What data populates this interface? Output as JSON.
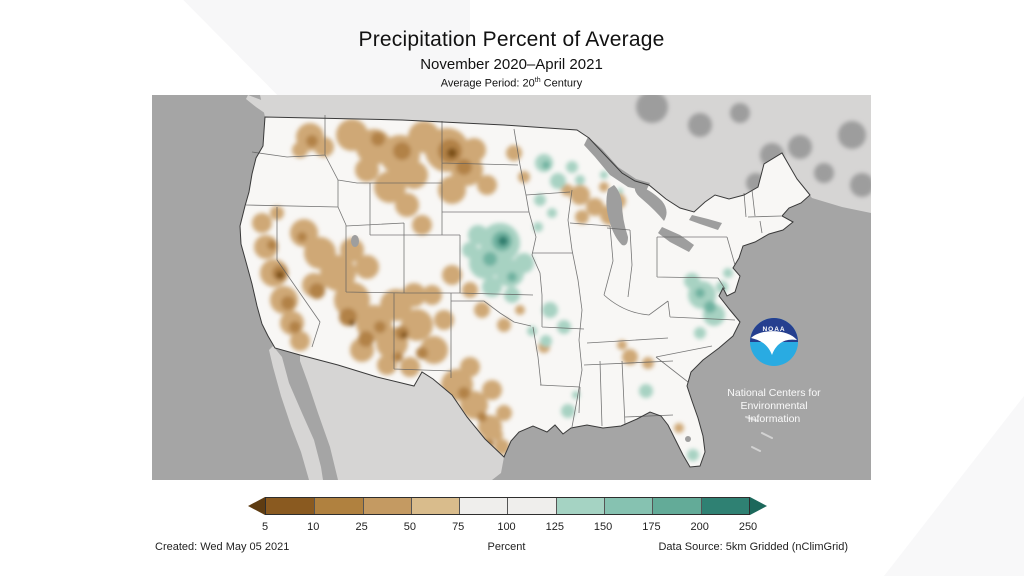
{
  "header": {
    "title": "Precipitation Percent of Average",
    "subtitle": "November 2020–April 2021",
    "period_prefix": "Average Period: 20",
    "period_sup": "th",
    "period_suffix": " Century"
  },
  "map": {
    "logo_text": "NOAA",
    "org_line1": "National Centers for",
    "org_line2": "Environmental",
    "org_line3": "Information"
  },
  "legend": {
    "ticks": [
      "5",
      "10",
      "25",
      "50",
      "75",
      "100",
      "125",
      "150",
      "175",
      "200",
      "250"
    ],
    "segment_colors": [
      "#8a5a20",
      "#b0813f",
      "#c49a62",
      "#d9bc8c",
      "#efeeec",
      "#efeeec",
      "#a5d3c3",
      "#86c2b1",
      "#63ab98",
      "#2f8173"
    ],
    "arrow_left_color": "#5e3c12",
    "arrow_right_color": "#1c685b"
  },
  "footer": {
    "created": "Created: Wed May 05 2021",
    "unit_label": "Percent",
    "data_source": "Data Source: 5km Gridded (nClimGrid)"
  },
  "palette": {
    "ocean": "#a5a5a5",
    "neighbor_land": "#d6d5d4",
    "canada_patch": "#9d9d9d",
    "us_land": "#f8f7f5",
    "lake_gray": "#9e9e9e",
    "state_border": "#5f5f5f",
    "us_outline": "#3a3a3a",
    "brown_light": "#cfa876",
    "brown_mid": "#b28247",
    "brown_dark": "#7c5018",
    "teal_light": "#a7d2c2",
    "teal_mid": "#6fb2a0",
    "teal_dark": "#2d7e6e",
    "logo_navy": "#253f8f",
    "logo_blue": "#29abe2",
    "bahamas": "#d2d2d2"
  },
  "chart_data": {
    "type": "choropleth_map",
    "title": "Precipitation Percent of Average",
    "subtitle": "November 2020–April 2021",
    "average_period": "20th Century",
    "unit": "Percent",
    "region": "Contiguous United States",
    "created": "Wed May 05 2021",
    "data_source": "5km Gridded (nClimGrid)",
    "scale_bins": [
      {
        "range": "< 5",
        "color": "#5e3c12"
      },
      {
        "range": "5-10",
        "color": "#8a5a20"
      },
      {
        "range": "10-25",
        "color": "#b0813f"
      },
      {
        "range": "25-50",
        "color": "#c49a62"
      },
      {
        "range": "50-75",
        "color": "#d9bc8c"
      },
      {
        "range": "75-100",
        "color": "#efeeec"
      },
      {
        "range": "100-125",
        "color": "#efeeec"
      },
      {
        "range": "125-150",
        "color": "#a5d3c3"
      },
      {
        "range": "150-175",
        "color": "#86c2b1"
      },
      {
        "range": "175-200",
        "color": "#63ab98"
      },
      {
        "range": "200-250",
        "color": "#2f8173"
      },
      {
        "range": "> 250",
        "color": "#1c685b"
      }
    ],
    "regional_values_percent_of_average": [
      {
        "region": "California / Great Basin / Southwest (NV, UT, AZ, NM)",
        "value": "25-75, locally 5-25"
      },
      {
        "region": "Northern Plains (MT, ND, SD)",
        "value": "25-75, locally 10-25 in ND"
      },
      {
        "region": "Western and southern Texas",
        "value": "25-75"
      },
      {
        "region": "Eastern Washington / Idaho / Wyoming patches",
        "value": "50-75"
      },
      {
        "region": "Central Plains (NE, KS, IA, MO)",
        "value": "125-200, locally 200-250 in eastern Nebraska"
      },
      {
        "region": "Minnesota / Wisconsin patches",
        "value": "125-175"
      },
      {
        "region": "Upper Michigan / Wisconsin tan patches",
        "value": "50-75"
      },
      {
        "region": "Coastal Virginia / North Carolina",
        "value": "125-175"
      },
      {
        "region": "Southern Florida tip, Louisiana coast, central Georgia spots",
        "value": "125-150"
      },
      {
        "region": "Most of the East, Pacific Northwest coast, Gulf Coast states",
        "value": "75-125 (near average)"
      }
    ],
    "legend_ticks": [
      5,
      10,
      25,
      50,
      75,
      100,
      125,
      150,
      175,
      200,
      250
    ],
    "legend_position": "bottom",
    "grid": false
  }
}
